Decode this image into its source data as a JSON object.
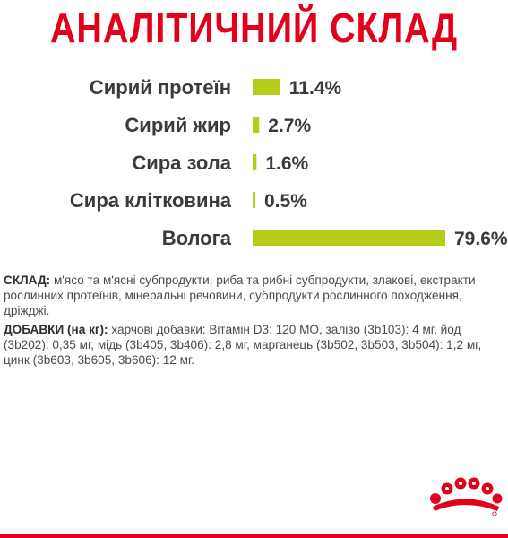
{
  "title": "АНАЛІТИЧНИЙ СКЛАД",
  "chart_data": {
    "type": "bar",
    "orientation": "horizontal",
    "categories": [
      "Сирий протеїн",
      "Сирий жир",
      "Сира зола",
      "Сира клітковина",
      "Волога"
    ],
    "values": [
      11.4,
      2.7,
      1.6,
      0.5,
      79.6
    ],
    "value_labels": [
      "11.4%",
      "2.7%",
      "1.6%",
      "0.5%",
      "79.6%"
    ],
    "unit": "%",
    "xlim": [
      0,
      79.6
    ],
    "bar_color": "#b5cc18",
    "grid": false
  },
  "composition": {
    "label": "СКЛАД:",
    "text": " м'ясо та м'ясні субпродукти, риба та рибні субпродукти, злакові, екстракти рослинних протеїнів, мінеральні речовини, субпродукти рослинного походження, дріжджі."
  },
  "additives": {
    "label": "ДОБАВКИ (на кг):",
    "text": " харчові добавки: Вітамін D3: 120 МО, залізо (3b103): 4 мг, йод (3b202): 0,35 мг, мідь (3b405, 3b406): 2,8 мг, марганець (3b502, 3b503, 3b504): 1,2 мг, цинк (3b603, 3b605, 3b606): 12 мг."
  },
  "colors": {
    "accent": "#e2001a",
    "bar": "#b5cc18",
    "text": "#3a3a3a"
  },
  "logo": {
    "icon": "royal-canin-crown-icon"
  }
}
